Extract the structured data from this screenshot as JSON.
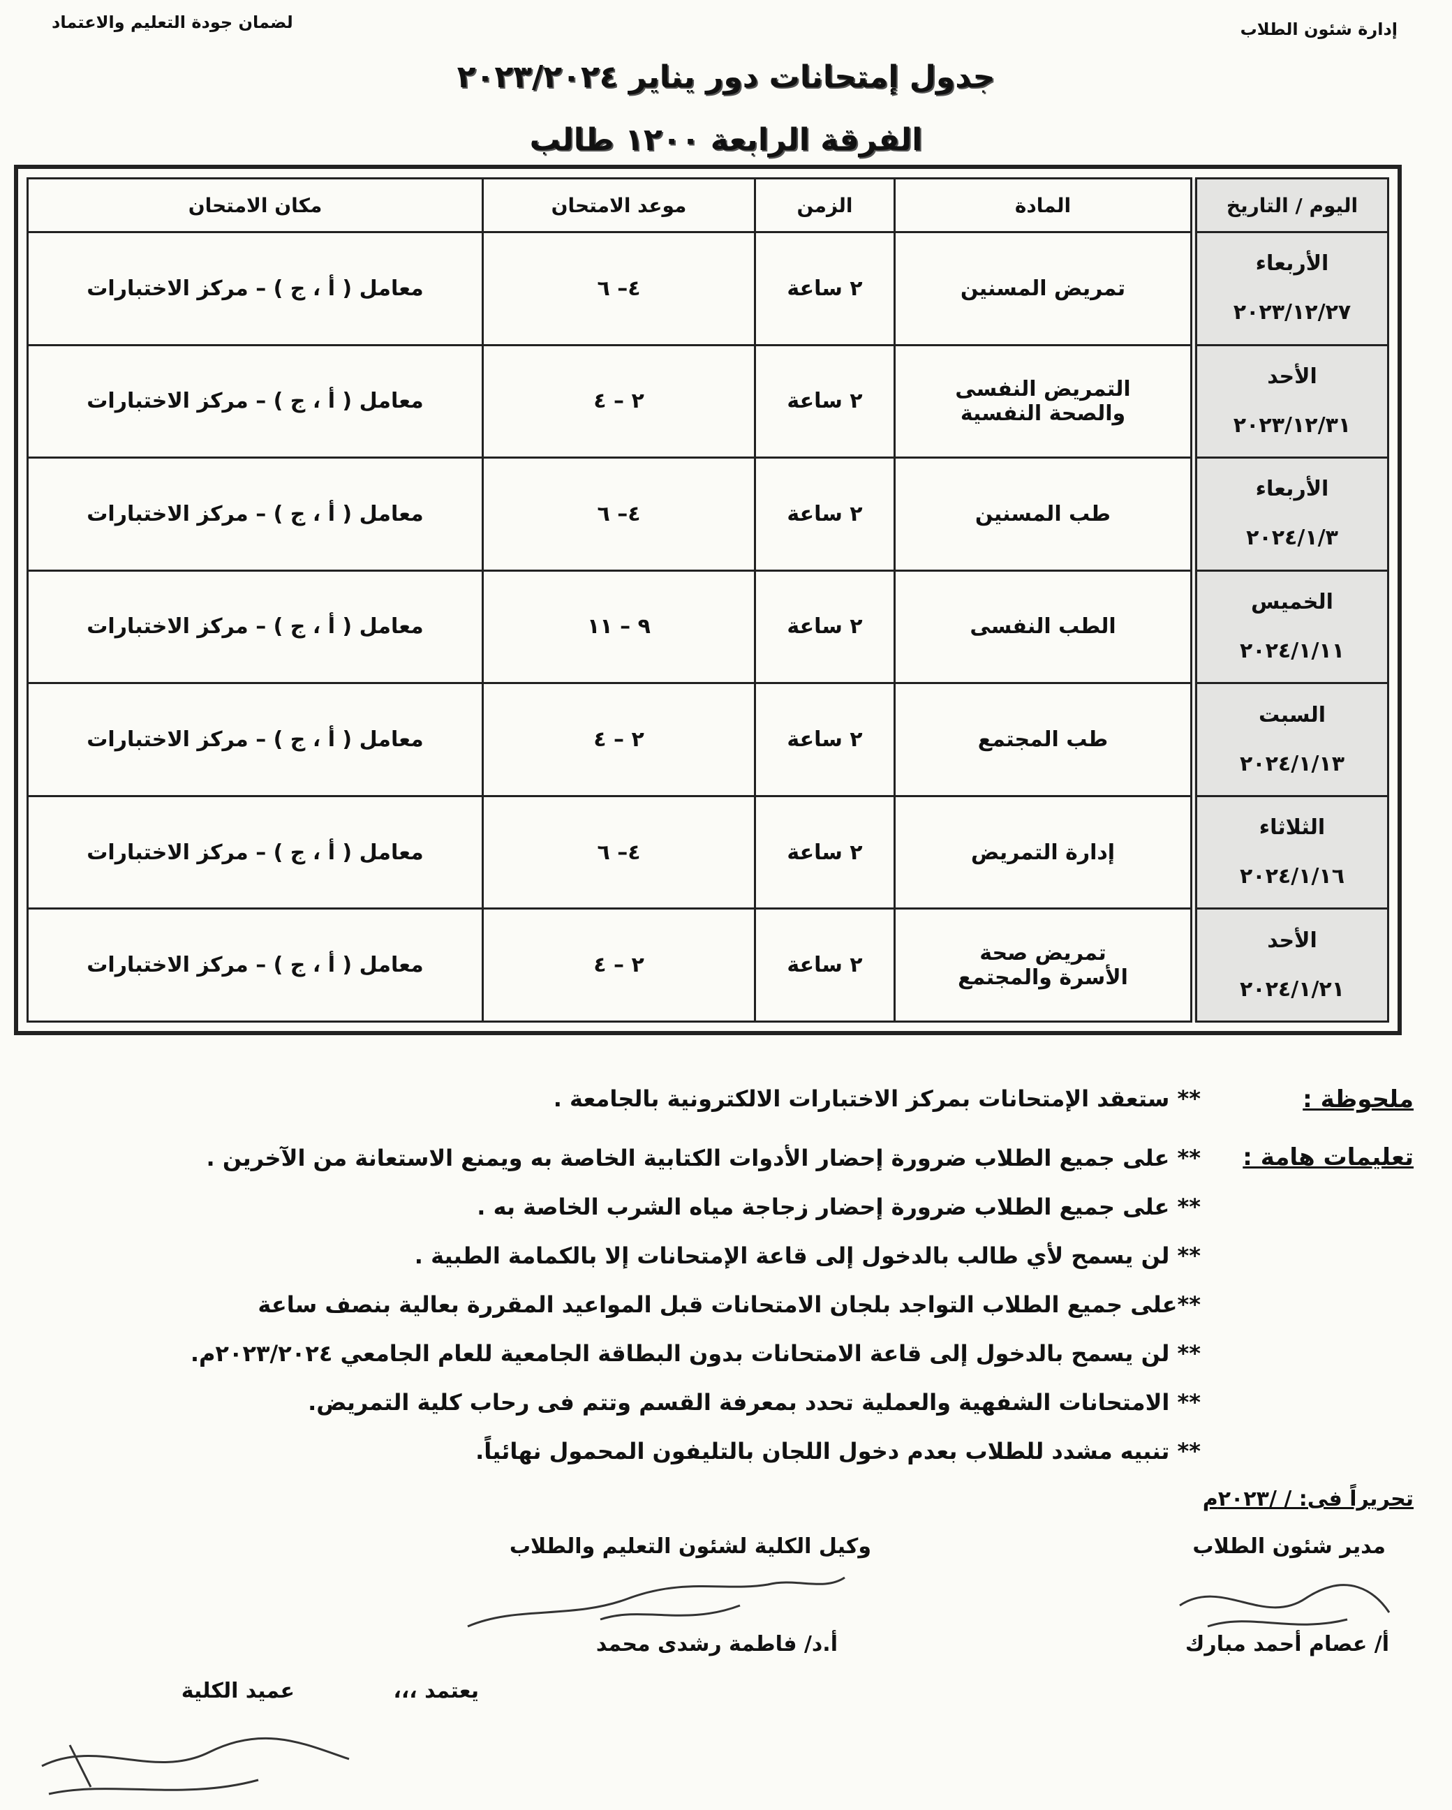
{
  "header": {
    "department": "إدارة شئون الطلاب",
    "quality_unit": "لضمان جودة التعليم والاعتماد"
  },
  "title": "جدول إمتحانات دور يناير ٢٠٢٣/٢٠٢٤",
  "subtitle": "الفرقة الرابعة   ١٢٠٠ طالب",
  "table": {
    "headers": {
      "day": "اليوم / التاريخ",
      "subject": "المادة",
      "duration": "الزمن",
      "time": "موعد الامتحان",
      "place": "مكان الامتحان"
    },
    "rows": [
      {
        "day": "الأربعاء",
        "date": "٢٠٢٣/١٢/٢٧",
        "subject": "تمريض المسنين",
        "subject2": "",
        "duration": "٢ ساعة",
        "time": "٤– ٦",
        "place": "معامل ( أ ، ج ) – مركز الاختبارات"
      },
      {
        "day": "الأحد",
        "date": "٢٠٢٣/١٢/٣١",
        "subject": "التمريض النفسى",
        "subject2": "والصحة النفسية",
        "duration": "٢ ساعة",
        "time": "٢ – ٤",
        "place": "معامل ( أ ، ج ) – مركز الاختبارات"
      },
      {
        "day": "الأربعاء",
        "date": "٢٠٢٤/١/٣",
        "subject": "طب المسنين",
        "subject2": "",
        "duration": "٢ ساعة",
        "time": "٤– ٦",
        "place": "معامل ( أ ، ج ) – مركز الاختبارات"
      },
      {
        "day": "الخميس",
        "date": "٢٠٢٤/١/١١",
        "subject": "الطب النفسى",
        "subject2": "",
        "duration": "٢ ساعة",
        "time": "٩ – ١١",
        "place": "معامل ( أ ، ج ) – مركز الاختبارات"
      },
      {
        "day": "السبت",
        "date": "٢٠٢٤/١/١٣",
        "subject": "طب المجتمع",
        "subject2": "",
        "duration": "٢ ساعة",
        "time": "٢ – ٤",
        "place": "معامل ( أ ، ج ) – مركز الاختبارات"
      },
      {
        "day": "الثلاثاء",
        "date": "٢٠٢٤/١/١٦",
        "subject": "إدارة التمريض",
        "subject2": "",
        "duration": "٢ ساعة",
        "time": "٤– ٦",
        "place": "معامل ( أ ، ج ) – مركز الاختبارات"
      },
      {
        "day": "الأحد",
        "date": "٢٠٢٤/١/٢١",
        "subject": "تمريض صحة",
        "subject2": "الأسرة والمجتمع",
        "duration": "٢ ساعة",
        "time": "٢ – ٤",
        "place": "معامل ( أ ، ج ) – مركز الاختبارات"
      }
    ]
  },
  "note": {
    "label": "ملحوظة :",
    "text": "** ستعقد الإمتحانات بمركز الاختبارات الالكترونية بالجامعة ."
  },
  "instructions": {
    "label": "تعليمات هامة :",
    "items": [
      "** على جميع الطلاب ضرورة إحضار الأدوات الكتابية الخاصة به ويمنع الاستعانة من الآخرين .",
      "** على جميع الطلاب ضرورة إحضار زجاجة مياه الشرب الخاصة به .",
      "** لن يسمح لأي طالب بالدخول إلى قاعة الإمتحانات إلا بالكمامة الطبية .",
      "**على جميع الطلاب التواجد بلجان الامتحانات قبل المواعيد المقررة بعالية بنصف ساعة",
      "** لن يسمح بالدخول إلى قاعة الامتحانات بدون البطاقة الجامعية للعام الجامعي ٢٠٢٣/٢٠٢٤م.",
      "** الامتحانات الشفهية والعملية تحدد بمعرفة القسم وتتم فى رحاب كلية التمريض.",
      "** تنبيه مشدد للطلاب بعدم دخول اللجان بالتليفون المحمول نهائياً."
    ]
  },
  "footer": {
    "written_on": "تحريراً فى:    /    /٢٠٢٣م",
    "director_title": "مدير شئون الطلاب",
    "director_name": "أ/ عصام أحمد مبارك",
    "vice_dean_title": "وكيل الكلية لشئون التعليم والطلاب",
    "vice_dean_name": "أ.د/ فاطمة رشدى محمد",
    "approved": "يعتمد ،،،",
    "dean_title": "عميد الكلية"
  }
}
